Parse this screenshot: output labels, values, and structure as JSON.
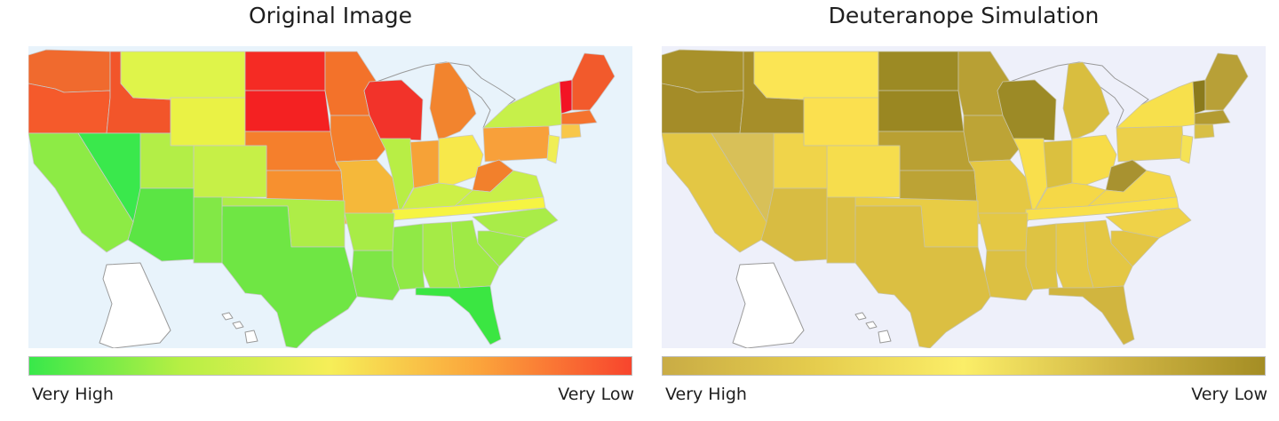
{
  "panels": [
    {
      "title": "Original Image",
      "legend": {
        "min_label": "Very High",
        "max_label": "Very Low",
        "gradient": [
          "#38e84a",
          "#b6ef44",
          "#f6ee58",
          "#fba33b",
          "#f8452d"
        ]
      },
      "colors": {
        "ocean": "#e8f3fb",
        "state_border": "#c9c9c9",
        "outline": "#9a9a9a",
        "wa": "#f06a2e",
        "or": "#f55a2b",
        "id": "#f2552a",
        "mt": "#dff44a",
        "wy": "#eaf245",
        "nd": "#f52b24",
        "sd": "#f42122",
        "ne": "#f57f2c",
        "ks": "#f7902f",
        "mn": "#f3722a",
        "wi": "#f2332a",
        "mi": "#f2842e",
        "ia": "#f47e2b",
        "mo": "#f5b83a",
        "il": "#b8ee45",
        "in": "#f6a237",
        "oh": "#f7e84a",
        "ky": "#cdf047",
        "tn": "#f6f442",
        "wv": "#f2802c",
        "pa": "#f8a03a",
        "ny": "#c6f04a",
        "ne_states": "#f8c74a",
        "me": "#f25a2c",
        "vt": "#f21424",
        "ma": "#f5732e",
        "nj": "#f0ee55",
        "va": "#c8ef48",
        "nc": "#a9ec48",
        "sc": "#9eea47",
        "ga": "#9fea46",
        "fl": "#3be642",
        "al": "#a5eb46",
        "ms": "#90e946",
        "la": "#7ee646",
        "ar": "#a8ec46",
        "tx": "#6fe644",
        "ok": "#aeed47",
        "nm": "#82e846",
        "az": "#5be544",
        "ut": "#b3ee47",
        "co": "#c6f047",
        "nv": "#3ae84c",
        "ca": "#8deb45",
        "ak": "#ffffff",
        "hi": "#ffffff"
      }
    },
    {
      "title": "Deuteranope Simulation",
      "legend": {
        "min_label": "Very High",
        "max_label": "Very Low",
        "gradient": [
          "#c9ac45",
          "#e5cc4d",
          "#fbee68",
          "#d2b745",
          "#a48d24"
        ]
      },
      "colors": {
        "ocean": "#eef0fa",
        "state_border": "#c8c3a4",
        "outline": "#9a9a9a",
        "wa": "#a8912a",
        "or": "#a48c28",
        "id": "#a68e29",
        "mt": "#fbe554",
        "wy": "#fbe04f",
        "nd": "#9c8a24",
        "sd": "#9a8722",
        "ne": "#b9a033",
        "ks": "#bca335",
        "mn": "#b8a034",
        "wi": "#9c8a26",
        "mi": "#d9be3f",
        "ia": "#bda436",
        "mo": "#e5c843",
        "il": "#f9df4c",
        "in": "#dbc03f",
        "oh": "#f7dc48",
        "ky": "#f5d847",
        "tn": "#f9e04b",
        "wv": "#a89230",
        "pa": "#ecd04a",
        "ny": "#f7e04c",
        "ne_states": "#d8bf45",
        "me": "#b8a037",
        "vt": "#8a7a1c",
        "ma": "#b39b31",
        "nj": "#f5e255",
        "va": "#f4d84a",
        "nc": "#efd248",
        "sc": "#e3c543",
        "ga": "#e4c744",
        "fl": "#d1b53f",
        "al": "#e5c845",
        "ms": "#dec343",
        "la": "#dcc042",
        "ar": "#e4c844",
        "tx": "#dbbf42",
        "ok": "#e8cc45",
        "nm": "#dbc044",
        "az": "#d8bc42",
        "ut": "#f0d44a",
        "co": "#f6dd4d",
        "nv": "#d8c058",
        "ca": "#e3c744",
        "ak": "#ffffff",
        "hi": "#ffffff"
      }
    }
  ]
}
